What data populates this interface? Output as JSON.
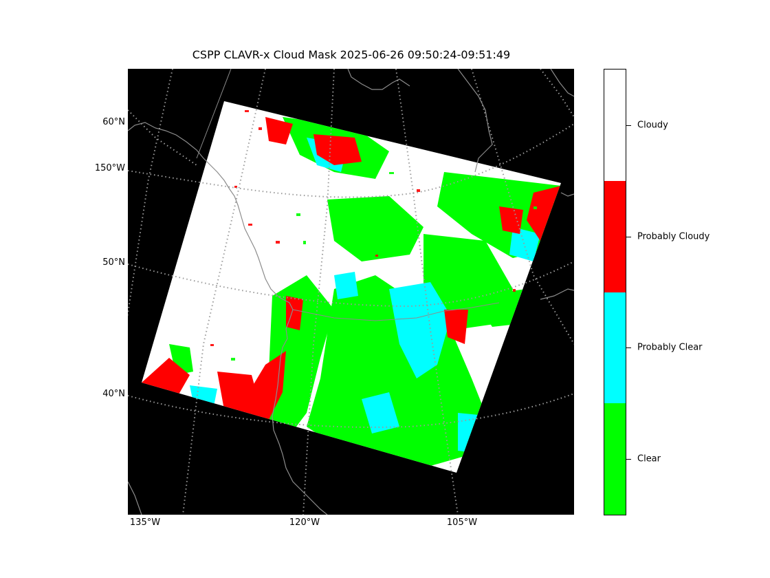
{
  "title": "CSPP CLAVR-x Cloud Mask 2025-06-26 09:50:24-09:51:49",
  "lat_labels": [
    "60°N",
    "150°W",
    "50°N",
    "40°N"
  ],
  "lon_labels": [
    "135°W",
    "120°W",
    "105°W"
  ],
  "colorbar": {
    "categories": [
      {
        "label": "Cloudy",
        "color": "#ffffff"
      },
      {
        "label": "Probably Cloudy",
        "color": "#ff0000"
      },
      {
        "label": "Probably Clear",
        "color": "#00ffff"
      },
      {
        "label": "Clear",
        "color": "#00ff00"
      }
    ]
  },
  "colors": {
    "background": "#000000",
    "coastline": "#8c8c8c",
    "graticule": "#9a9a9a"
  }
}
